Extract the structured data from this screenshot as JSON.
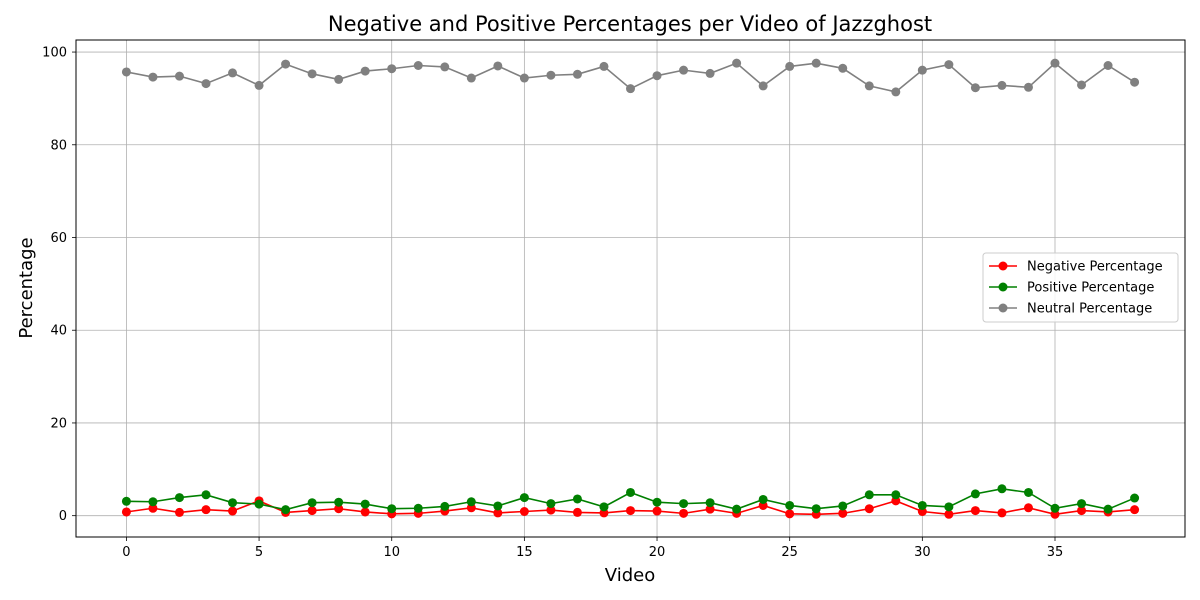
{
  "chart_data": {
    "type": "line",
    "title": "Negative and Positive Percentages per Video of Jazzghost",
    "xlabel": "Video",
    "ylabel": "Percentage",
    "xlim": [
      -1.9,
      39.9
    ],
    "ylim": [
      -4.6,
      102.6
    ],
    "xticks": [
      0,
      5,
      10,
      15,
      20,
      25,
      30,
      35
    ],
    "yticks": [
      0,
      20,
      40,
      60,
      80,
      100
    ],
    "grid": true,
    "legend_position": "center-right",
    "x": [
      0,
      1,
      2,
      3,
      4,
      5,
      6,
      7,
      8,
      9,
      10,
      11,
      12,
      13,
      14,
      15,
      16,
      17,
      18,
      19,
      20,
      21,
      22,
      23,
      24,
      25,
      26,
      27,
      28,
      29,
      30,
      31,
      32,
      33,
      34,
      35,
      36,
      37,
      38
    ],
    "series": [
      {
        "name": "Negative Percentage",
        "color": "#ff0000",
        "values": [
          0.8,
          1.6,
          0.7,
          1.3,
          1.0,
          3.2,
          0.7,
          1.1,
          1.5,
          0.8,
          0.4,
          0.5,
          1.0,
          1.7,
          0.6,
          0.9,
          1.2,
          0.7,
          0.6,
          1.1,
          1.0,
          0.5,
          1.4,
          0.5,
          2.2,
          0.4,
          0.3,
          0.5,
          1.5,
          3.2,
          0.9,
          0.3,
          1.1,
          0.6,
          1.7,
          0.3,
          1.1,
          0.8,
          1.3
        ]
      },
      {
        "name": "Positive Percentage",
        "color": "#008000",
        "values": [
          3.1,
          3.0,
          3.9,
          4.5,
          2.8,
          2.5,
          1.3,
          2.8,
          2.9,
          2.5,
          1.5,
          1.6,
          2.0,
          3.0,
          2.1,
          3.9,
          2.6,
          3.6,
          1.9,
          5.0,
          2.9,
          2.6,
          2.8,
          1.4,
          3.5,
          2.2,
          1.5,
          2.1,
          4.5,
          4.5,
          2.2,
          1.9,
          4.7,
          5.8,
          5.0,
          1.6,
          2.6,
          1.4,
          3.8
        ]
      },
      {
        "name": "Neutral Percentage",
        "color": "#808080",
        "values": [
          95.7,
          94.6,
          94.8,
          93.2,
          95.5,
          92.8,
          97.4,
          95.3,
          94.1,
          95.9,
          96.4,
          97.1,
          96.8,
          94.4,
          97.0,
          94.4,
          95.0,
          95.2,
          96.9,
          92.1,
          94.9,
          96.1,
          95.4,
          97.6,
          92.7,
          96.9,
          97.6,
          96.5,
          92.7,
          91.4,
          96.1,
          97.3,
          92.3,
          92.8,
          92.4,
          97.6,
          92.9,
          97.1,
          93.5
        ]
      }
    ]
  }
}
